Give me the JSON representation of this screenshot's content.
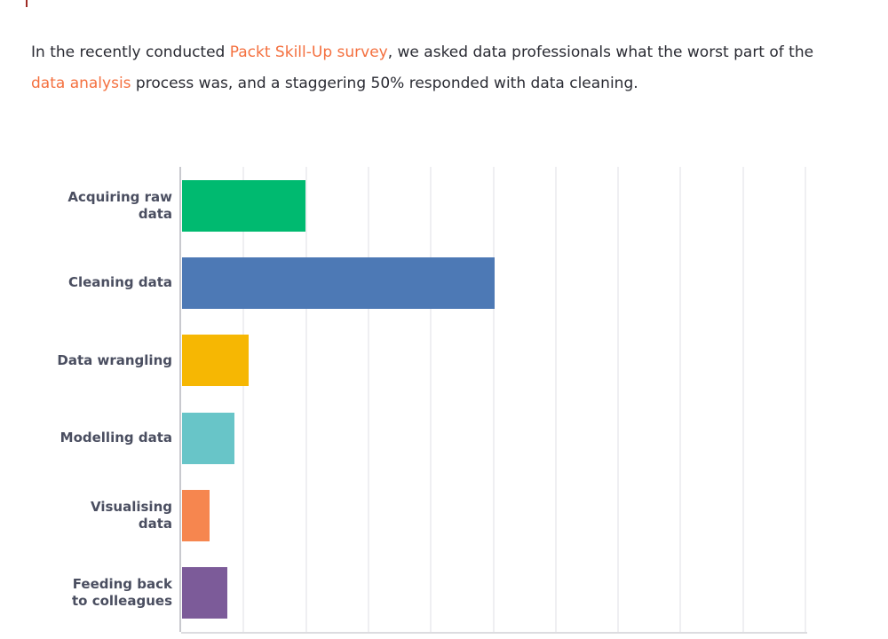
{
  "page": {
    "background": "#ffffff"
  },
  "caret_artifact": {
    "color": "#9e2b25"
  },
  "intro": {
    "text_color": "#2a2b33",
    "link_color": "#f4703f",
    "part1": "In the recently conducted ",
    "link1": "Packt Skill-Up survey",
    "part2": ", we asked data professionals what the worst part of the ",
    "link2": "data analysis",
    "part3": " process was, and a staggering 50% responded with data cleaning."
  },
  "chart_data": {
    "type": "bar",
    "orientation": "horizontal",
    "title": "",
    "xlabel": "",
    "ylabel": "",
    "unit": "percent of respondents",
    "xlim": [
      0,
      100
    ],
    "gridline_step": 10,
    "grid": "vertical gridlines only, no tick labels shown",
    "legend": "none",
    "categories": [
      "Acquiring raw data",
      "Cleaning data",
      "Data wrangling",
      "Modelling data",
      "Visualising data",
      "Feeding back to colleagues"
    ],
    "values": [
      19.8,
      50,
      10.7,
      8.4,
      4.4,
      7.3
    ],
    "bars": [
      {
        "label_lines": [
          "Acquiring raw",
          "data"
        ],
        "value": 19.8,
        "color": "#00ba70"
      },
      {
        "label_lines": [
          "Cleaning data"
        ],
        "value": 50,
        "color": "#4d79b5"
      },
      {
        "label_lines": [
          "Data wrangling"
        ],
        "value": 10.7,
        "color": "#f6b703"
      },
      {
        "label_lines": [
          "Modelling data"
        ],
        "value": 8.4,
        "color": "#68c5c8"
      },
      {
        "label_lines": [
          "Visualising",
          "data"
        ],
        "value": 4.4,
        "color": "#f6864f"
      },
      {
        "label_lines": [
          "Feeding back",
          "to colleagues"
        ],
        "value": 7.3,
        "color": "#7c5b99"
      }
    ],
    "label_color": "#4a4e60",
    "axis_color": "#c8c9ce",
    "bottom_axis_color": "#dcdce0",
    "gridline_color": "#efeff2"
  }
}
